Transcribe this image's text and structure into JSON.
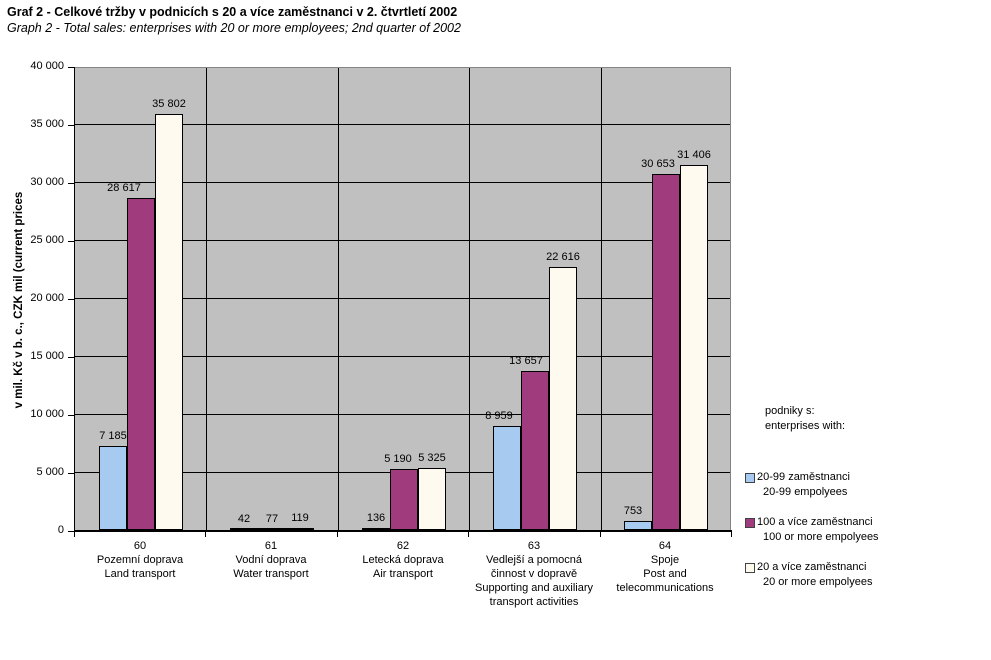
{
  "header": {
    "title": "Graf 2 - Celkové tržby v podnicích s 20 a více zaměstnanci v 2. čtvrtletí 2002",
    "subtitle": "Graph 2 - Total sales: enterprises with 20 or more employees; 2nd quarter of 2002"
  },
  "chart_data": {
    "type": "bar",
    "title": "Graf 2 - Celkové tržby v podnicích s 20 a více zaměstnanci v 2. čtvrtletí 2002",
    "subtitle": "Graph 2 - Total sales: enterprises with 20 or more employees; 2nd quarter of 2002",
    "ylabel": "v mil. Kč v b. c., CZK mil (current prices",
    "xlabel": "",
    "ylim": [
      0,
      40000
    ],
    "ytick_step": 5000,
    "ytick_labels": [
      "0",
      "5 000",
      "10 000",
      "15 000",
      "20 000",
      "25 000",
      "30 000",
      "35 000",
      "40 000"
    ],
    "grid": "horizontal gridlines every 5000, vertical category separators",
    "legend_position": "right",
    "plot_background": "#C0C0C0",
    "categories": [
      {
        "code": "60",
        "label_cs": "Pozemní doprava",
        "label_en": "Land transport",
        "lines": [
          "60",
          "Pozemní doprava",
          "Land transport"
        ]
      },
      {
        "code": "61",
        "label_cs": "Vodní doprava",
        "label_en": "Water transport",
        "lines": [
          "61",
          "Vodní doprava",
          "Water transport"
        ]
      },
      {
        "code": "62",
        "label_cs": "Letecká doprava",
        "label_en": "Air transport",
        "lines": [
          "62",
          "Letecká doprava",
          "Air transport"
        ]
      },
      {
        "code": "63",
        "label_cs": "Vedlejší a pomocná činnost v dopravě",
        "label_en": "Supporting and auxiliary transport activities",
        "lines": [
          "63",
          "Vedlejší a pomocná",
          "činnost v dopravě",
          "Supporting and auxiliary",
          "transport activities"
        ]
      },
      {
        "code": "64",
        "label_cs": "Spoje",
        "label_en": "Post and telecommunications",
        "lines": [
          "64",
          "Spoje",
          "Post and",
          "telecommunications"
        ]
      }
    ],
    "series": [
      {
        "name_cs": "20-99 zaměstnanci",
        "name_en": "20-99 empolyees",
        "color": "#A6CAF0",
        "values": [
          7185,
          42,
          136,
          8959,
          753
        ],
        "value_labels": [
          "7 185",
          "42",
          "136",
          "8 959",
          "753"
        ]
      },
      {
        "name_cs": "100 a více zaměstnanci",
        "name_en": "100 or more empolyees",
        "color": "#A03C7E",
        "values": [
          28617,
          77,
          5190,
          13657,
          30653
        ],
        "value_labels": [
          "28 617",
          "77",
          "5 190",
          "13 657",
          "30 653"
        ]
      },
      {
        "name_cs": "20 a více zaměstnanci",
        "name_en": "20 or more empolyees",
        "color": "#FFFAF0",
        "values": [
          35802,
          119,
          5325,
          22616,
          31406
        ],
        "value_labels": [
          "35 802",
          "119",
          "5 325",
          "22 616",
          "31 406"
        ]
      }
    ]
  },
  "legend": {
    "title_cs": "podniky s:",
    "title_en": "enterprises with:"
  },
  "colors": {
    "plot_bg": "#C0C0C0",
    "plot_border": "#848484",
    "gridline": "#000000",
    "bar_border": "#000000"
  }
}
